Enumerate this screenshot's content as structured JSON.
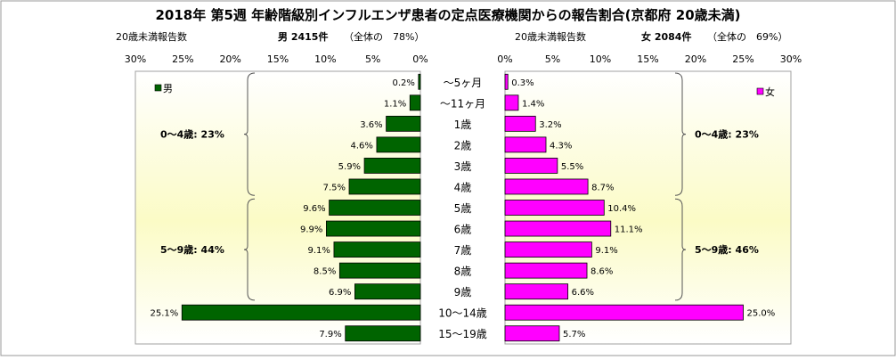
{
  "title": "2018年 第5週 年齢階級別インフルエンザ患者の定点医療機関からの報告割合(京都府 20歳未満)",
  "chart_data": {
    "type": "bar",
    "orientation": "horizontal-butterfly",
    "categories": [
      "～5ヶ月",
      "～11ヶ月",
      "1歳",
      "2歳",
      "3歳",
      "4歳",
      "5歳",
      "6歳",
      "7歳",
      "8歳",
      "9歳",
      "10～14歳",
      "15～19歳"
    ],
    "axis_ticks": [
      "30%",
      "25%",
      "20%",
      "15%",
      "10%",
      "5%",
      "0%"
    ],
    "axis_ticks_right": [
      "0%",
      "5%",
      "10%",
      "15%",
      "20%",
      "25%",
      "30%"
    ],
    "xlim": [
      0,
      30
    ],
    "grid": false,
    "series": [
      {
        "name": "男",
        "axis_caption": "20歳未満報告数",
        "summary_bold": "男 2415件",
        "summary_rest": "（全体の　78%）",
        "color": "#006400",
        "values": [
          0.2,
          1.1,
          3.6,
          4.6,
          5.9,
          7.5,
          9.6,
          9.9,
          9.1,
          8.5,
          6.9,
          25.1,
          7.9
        ],
        "labels": [
          "0.2%",
          "1.1%",
          "3.6%",
          "4.6%",
          "5.9%",
          "7.5%",
          "9.6%",
          "9.9%",
          "9.1%",
          "8.5%",
          "6.9%",
          "25.1%",
          "7.9%"
        ],
        "legend_label": "男",
        "groups": [
          {
            "label": "0～4歳: 23%",
            "from": 0,
            "to": 5
          },
          {
            "label": "5～9歳: 44%",
            "from": 6,
            "to": 10
          }
        ]
      },
      {
        "name": "女",
        "axis_caption": "20歳未満報告数",
        "summary_bold": "女 2084件",
        "summary_rest": "（全体の　69%）",
        "color": "#ff00ff",
        "values": [
          0.3,
          1.4,
          3.2,
          4.3,
          5.5,
          8.7,
          10.4,
          11.1,
          9.1,
          8.6,
          6.6,
          25.0,
          5.7
        ],
        "labels": [
          "0.3%",
          "1.4%",
          "3.2%",
          "4.3%",
          "5.5%",
          "8.7%",
          "10.4%",
          "11.1%",
          "9.1%",
          "8.6%",
          "6.6%",
          "25.0%",
          "5.7%"
        ],
        "legend_label": "女",
        "groups": [
          {
            "label": "0～4歳: 23%",
            "from": 0,
            "to": 5
          },
          {
            "label": "5～9歳: 46%",
            "from": 6,
            "to": 10
          }
        ]
      }
    ]
  }
}
